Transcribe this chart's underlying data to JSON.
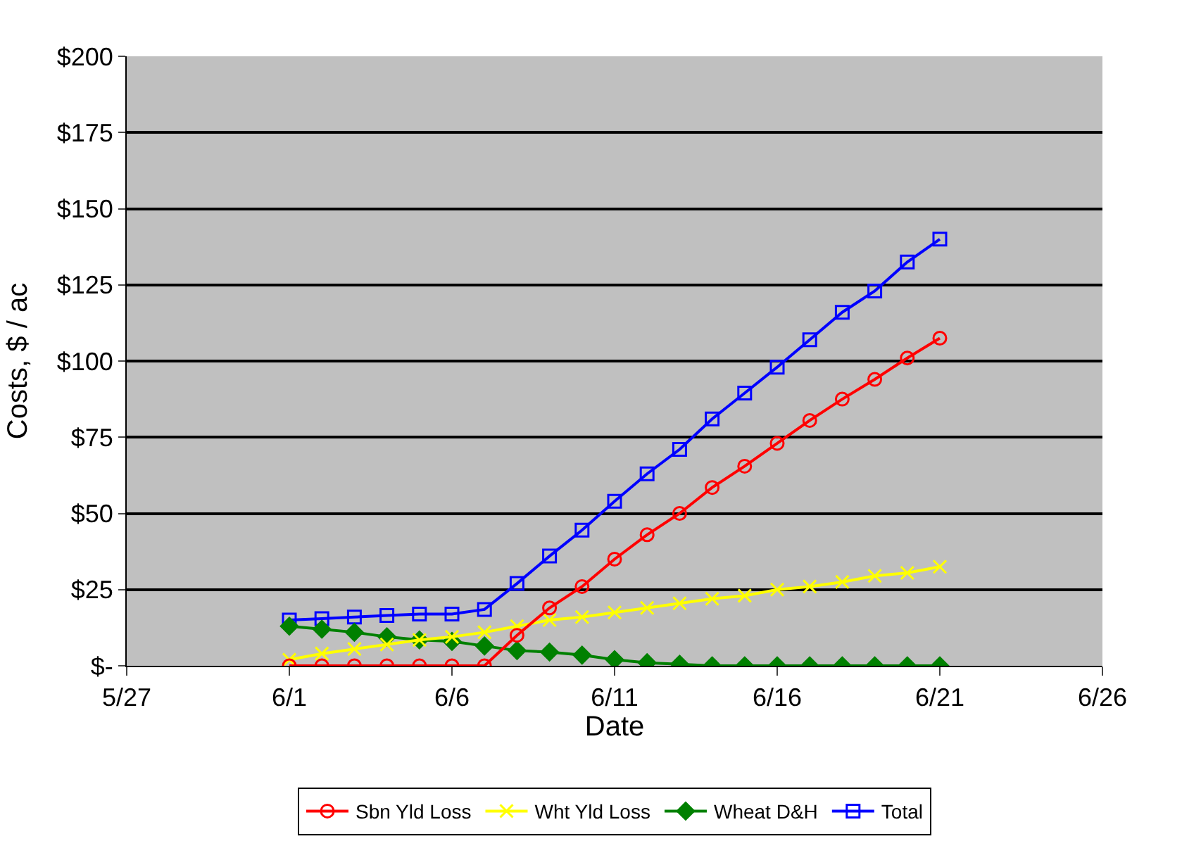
{
  "chart_data": {
    "type": "line",
    "xlabel": "Date",
    "ylabel": "Costs, $ / ac",
    "x": [
      "--06-01",
      "--06-02",
      "--06-03",
      "--06-04",
      "--06-05",
      "--06-06",
      "--06-07",
      "--06-08",
      "--06-09",
      "--06-10",
      "--06-11",
      "--06-12",
      "--06-13",
      "--06-14",
      "--06-15",
      "--06-16",
      "--06-17",
      "--06-18",
      "--06-19",
      "--06-20",
      "--06-21"
    ],
    "series": [
      {
        "name": "Sbn Yld Loss",
        "color": "#ff0000",
        "marker": "circle",
        "values": [
          0,
          0,
          0,
          0,
          0,
          0,
          0,
          10,
          19,
          26,
          35,
          43,
          50,
          58.5,
          65.5,
          73,
          80.5,
          87.5,
          94,
          101,
          107.5
        ]
      },
      {
        "name": "Wht Yld Loss",
        "color": "#ffff00",
        "marker": "cross",
        "values": [
          2,
          4,
          5.5,
          7,
          8.5,
          9.5,
          11,
          13,
          15,
          16,
          17.5,
          19,
          20.5,
          22,
          23,
          25,
          26,
          27.5,
          29.5,
          30.5,
          32.5
        ]
      },
      {
        "name": "Wheat D&H",
        "color": "#008000",
        "marker": "diamond",
        "values": [
          13,
          12,
          11,
          9.5,
          8.5,
          8,
          6.5,
          5,
          4.5,
          3.5,
          2,
          1,
          0.5,
          0,
          0,
          0,
          0,
          0,
          0,
          0,
          0
        ]
      },
      {
        "name": "Total",
        "color": "#0000ff",
        "marker": "square",
        "values": [
          15,
          15.5,
          16,
          16.5,
          17,
          17,
          18.5,
          27,
          36,
          44.5,
          54,
          63,
          71,
          81,
          89.5,
          98,
          107,
          116,
          123,
          132.5,
          140
        ]
      }
    ],
    "xlim": [
      "--05-27",
      "--06-26"
    ],
    "xticks": [
      {
        "value": "--05-27",
        "label": "5/27"
      },
      {
        "value": "--06-01",
        "label": "6/1"
      },
      {
        "value": "--06-06",
        "label": "6/6"
      },
      {
        "value": "--06-11",
        "label": "6/11"
      },
      {
        "value": "--06-16",
        "label": "6/16"
      },
      {
        "value": "--06-21",
        "label": "6/21"
      },
      {
        "value": "--06-26",
        "label": "6/26"
      }
    ],
    "ylim": [
      0,
      200
    ],
    "yticks": [
      {
        "value": 0,
        "label": "$-"
      },
      {
        "value": 25,
        "label": "$25"
      },
      {
        "value": 50,
        "label": "$50"
      },
      {
        "value": 75,
        "label": "$75"
      },
      {
        "value": 100,
        "label": "$100"
      },
      {
        "value": 125,
        "label": "$125"
      },
      {
        "value": 150,
        "label": "$150"
      },
      {
        "value": 175,
        "label": "$175"
      },
      {
        "value": 200,
        "label": "$200"
      }
    ],
    "grid": "y",
    "legend": "bottom",
    "line_style": "solid"
  }
}
